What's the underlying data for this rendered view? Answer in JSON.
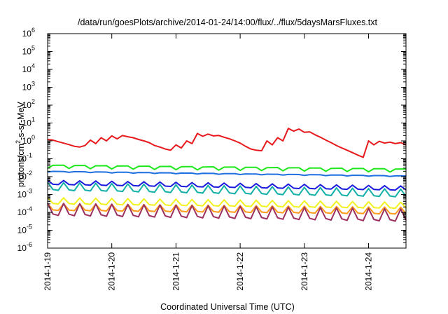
{
  "chart_data": {
    "type": "line",
    "title": "/data/run/goesPlots/archive/2014-01-24/14:00/flux/../flux/5daysMarsFluxes.txt",
    "xlabel": "Coordinated Universal Time (UTC)",
    "ylabel_parts": {
      "base": "protons/cm",
      "sup": "2",
      "rest": "-s-sr-MeV"
    },
    "y_scale": "log",
    "xlim": [
      "2014-01-19",
      "2014-01-24 14:00"
    ],
    "ylim": [
      1e-06,
      1000000.0
    ],
    "y_ticks": [
      {
        "value": 1e-06,
        "base": "10",
        "exp": "-6"
      },
      {
        "value": 1e-05,
        "base": "10",
        "exp": "-5"
      },
      {
        "value": 0.0001,
        "base": "10",
        "exp": "-4"
      },
      {
        "value": 0.001,
        "base": "10",
        "exp": "-3"
      },
      {
        "value": 0.01,
        "base": "10",
        "exp": "-2"
      },
      {
        "value": 0.1,
        "base": "10",
        "exp": "-1"
      },
      {
        "value": 1.0,
        "base": "10",
        "exp": "0"
      },
      {
        "value": 10.0,
        "base": "10",
        "exp": "1"
      },
      {
        "value": 100.0,
        "base": "10",
        "exp": "2"
      },
      {
        "value": 1000.0,
        "base": "10",
        "exp": "3"
      },
      {
        "value": 10000.0,
        "base": "10",
        "exp": "4"
      },
      {
        "value": 100000.0,
        "base": "10",
        "exp": "5"
      },
      {
        "value": 1000000.0,
        "base": "10",
        "exp": "6"
      }
    ],
    "x_ticks": [
      "2014-1-19",
      "2014-1-20",
      "2014-1-21",
      "2014-1-22",
      "2014-1-23",
      "2014-1-24"
    ],
    "grid": false,
    "legend": "none",
    "sample_step_hours": 2,
    "series": [
      {
        "color": "#e8191c",
        "values": [
          1.2,
          1.1,
          0.9,
          0.75,
          0.62,
          0.5,
          0.45,
          0.55,
          1.1,
          0.7,
          1.5,
          1.0,
          1.9,
          1.3,
          2.0,
          1.7,
          1.5,
          1.2,
          1.0,
          0.8,
          0.55,
          0.45,
          0.35,
          0.3,
          0.6,
          0.4,
          1.0,
          0.7,
          2.6,
          1.8,
          2.4,
          1.9,
          2.0,
          1.6,
          1.3,
          1.0,
          0.75,
          0.5,
          0.35,
          0.3,
          0.28,
          1.0,
          0.6,
          1.5,
          1.0,
          5.0,
          3.5,
          4.6,
          3.0,
          3.2,
          2.2,
          1.6,
          1.1,
          0.8,
          0.55,
          0.4,
          0.3,
          0.22,
          0.16,
          0.12,
          1.0,
          0.6,
          0.95,
          0.75,
          0.85,
          0.7,
          0.8,
          0.6,
          0.5,
          0.42,
          0.35,
          0.3,
          0.25,
          0.2,
          0.18,
          0.16,
          0.25,
          0.18,
          0.3,
          0.2,
          0.32,
          0.24,
          0.35,
          0.26,
          0.32,
          0.28,
          0.26,
          0.24,
          0.22,
          0.2,
          0.19,
          0.18,
          0.17,
          0.16,
          0.2,
          0.16,
          0.35
        ]
      },
      {
        "color": "#1ee81c",
        "base": 0.045,
        "end": 0.022,
        "spike": 0.65,
        "spike_every": 4
      },
      {
        "color": "#1e6fe0",
        "base": 0.02,
        "end": 0.0085,
        "spike": 0.9,
        "spike_every": 4
      },
      {
        "color": "#1a1adf",
        "base": 0.0035,
        "end": 0.0012,
        "spike": 1.8,
        "spike_every": 3
      },
      {
        "color": "#14b0a8",
        "base": 0.0016,
        "end": 0.00045,
        "spike": 3.0,
        "spike_every": 3
      },
      {
        "color": "#f2f21e",
        "base": 0.00028,
        "end": 0.00012,
        "spike": 2.4,
        "spike_every": 3
      },
      {
        "color": "#ff9a1a",
        "base": 0.00012,
        "end": 6e-05,
        "spike": 2.6,
        "spike_every": 3
      },
      {
        "color": "#9c3060",
        "base": 5.5e-05,
        "end": 1.8e-05,
        "spike": 6.0,
        "spike_every": 3
      }
    ]
  }
}
